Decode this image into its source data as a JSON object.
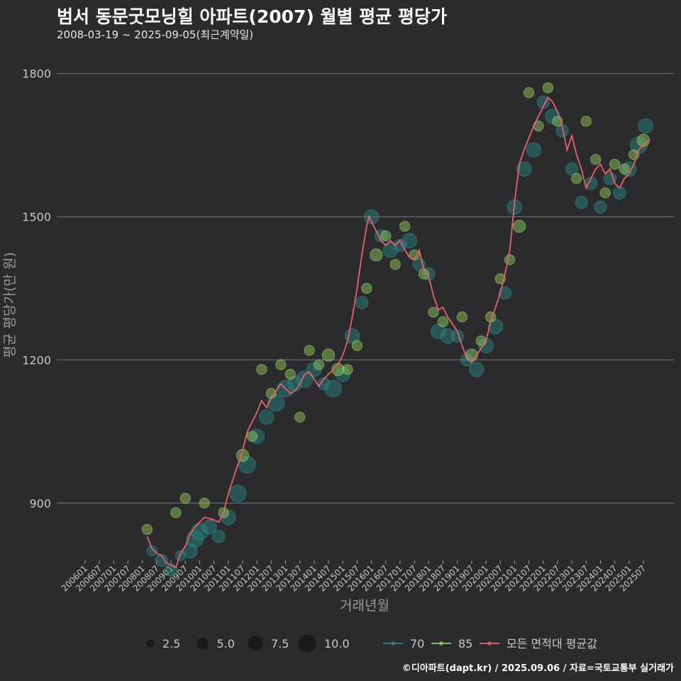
{
  "header": {
    "title": "범서 동문굿모닝힐 아파트(2007) 월별 평균 평당가",
    "subtitle": "2008-03-19 ~ 2025-09-05(최근계약일)"
  },
  "caption": "©디아파트(dapt.kr) / 2025.09.06 / 자료=국토교통부 실거래가",
  "colors": {
    "background": "#2b2a2c",
    "grid": "#6b6b6b",
    "area_70": "#2a8a8a",
    "area_85": "#93d35f",
    "mean_line": "#e8626a"
  },
  "legend": {
    "size_items": [
      "2.5",
      "5.0",
      "7.5",
      "10.0"
    ],
    "series_items": [
      {
        "key": "area_70",
        "label": "70"
      },
      {
        "key": "area_85",
        "label": "85"
      },
      {
        "key": "mean_line",
        "label": "모든 면적대 평균값"
      }
    ]
  },
  "chart_data": {
    "type": "scatter",
    "xlabel": "거래년월",
    "ylabel": "평균 평당가(만 원)",
    "ylim": [
      780,
      1850
    ],
    "yticks": [
      900,
      1200,
      1500,
      1800
    ],
    "xticks": [
      "200601",
      "200607",
      "200701",
      "200707",
      "200801",
      "200807",
      "200901",
      "200907",
      "201001",
      "201007",
      "201101",
      "201107",
      "201201",
      "201207",
      "201301",
      "201307",
      "201401",
      "201407",
      "201501",
      "201507",
      "201601",
      "201607",
      "201701",
      "201707",
      "201801",
      "201807",
      "201901",
      "201907",
      "202001",
      "202007",
      "202101",
      "202107",
      "202201",
      "202207",
      "202301",
      "202307",
      "202401",
      "202407",
      "202501",
      "202507"
    ],
    "grid": true,
    "legend_position": "bottom",
    "series": [
      {
        "name": "모든 면적대 평균값",
        "color_key": "mean_line",
        "type": "line",
        "points": [
          [
            "2008-03",
            830
          ],
          [
            "2008-05",
            805
          ],
          [
            "2008-07",
            795
          ],
          [
            "2008-09",
            790
          ],
          [
            "2008-11",
            775
          ],
          [
            "2009-01",
            770
          ],
          [
            "2009-03",
            765
          ],
          [
            "2009-05",
            795
          ],
          [
            "2009-07",
            810
          ],
          [
            "2009-09",
            835
          ],
          [
            "2009-11",
            850
          ],
          [
            "2010-01",
            860
          ],
          [
            "2010-03",
            870
          ],
          [
            "2010-05",
            868
          ],
          [
            "2010-07",
            865
          ],
          [
            "2010-09",
            860
          ],
          [
            "2010-11",
            880
          ],
          [
            "2011-01",
            920
          ],
          [
            "2011-03",
            950
          ],
          [
            "2011-05",
            980
          ],
          [
            "2011-07",
            1010
          ],
          [
            "2011-09",
            1050
          ],
          [
            "2011-11",
            1070
          ],
          [
            "2012-01",
            1090
          ],
          [
            "2012-03",
            1115
          ],
          [
            "2012-05",
            1100
          ],
          [
            "2012-07",
            1120
          ],
          [
            "2012-09",
            1135
          ],
          [
            "2012-11",
            1150
          ],
          [
            "2013-01",
            1140
          ],
          [
            "2013-03",
            1130
          ],
          [
            "2013-05",
            1135
          ],
          [
            "2013-07",
            1150
          ],
          [
            "2013-09",
            1170
          ],
          [
            "2013-11",
            1175
          ],
          [
            "2014-01",
            1160
          ],
          [
            "2014-03",
            1145
          ],
          [
            "2014-05",
            1160
          ],
          [
            "2014-07",
            1170
          ],
          [
            "2014-09",
            1180
          ],
          [
            "2014-11",
            1190
          ],
          [
            "2015-01",
            1210
          ],
          [
            "2015-03",
            1240
          ],
          [
            "2015-05",
            1290
          ],
          [
            "2015-07",
            1350
          ],
          [
            "2015-09",
            1420
          ],
          [
            "2015-11",
            1480
          ],
          [
            "2015-12",
            1500
          ],
          [
            "2016-01",
            1490
          ],
          [
            "2016-03",
            1470
          ],
          [
            "2016-05",
            1450
          ],
          [
            "2016-07",
            1440
          ],
          [
            "2016-09",
            1450
          ],
          [
            "2016-11",
            1440
          ],
          [
            "2017-01",
            1450
          ],
          [
            "2017-03",
            1430
          ],
          [
            "2017-05",
            1415
          ],
          [
            "2017-07",
            1410
          ],
          [
            "2017-09",
            1430
          ],
          [
            "2017-11",
            1390
          ],
          [
            "2018-01",
            1375
          ],
          [
            "2018-03",
            1335
          ],
          [
            "2018-05",
            1305
          ],
          [
            "2018-07",
            1310
          ],
          [
            "2018-09",
            1290
          ],
          [
            "2018-11",
            1275
          ],
          [
            "2019-01",
            1260
          ],
          [
            "2019-03",
            1230
          ],
          [
            "2019-05",
            1205
          ],
          [
            "2019-07",
            1195
          ],
          [
            "2019-09",
            1210
          ],
          [
            "2019-11",
            1225
          ],
          [
            "2020-01",
            1240
          ],
          [
            "2020-03",
            1280
          ],
          [
            "2020-05",
            1310
          ],
          [
            "2020-07",
            1340
          ],
          [
            "2020-09",
            1380
          ],
          [
            "2020-11",
            1430
          ],
          [
            "2021-01",
            1530
          ],
          [
            "2021-03",
            1610
          ],
          [
            "2021-05",
            1640
          ],
          [
            "2021-07",
            1665
          ],
          [
            "2021-09",
            1690
          ],
          [
            "2021-11",
            1710
          ],
          [
            "2022-01",
            1730
          ],
          [
            "2022-03",
            1750
          ],
          [
            "2022-05",
            1740
          ],
          [
            "2022-07",
            1720
          ],
          [
            "2022-09",
            1690
          ],
          [
            "2022-11",
            1640
          ],
          [
            "2023-01",
            1670
          ],
          [
            "2023-03",
            1630
          ],
          [
            "2023-05",
            1600
          ],
          [
            "2023-07",
            1560
          ],
          [
            "2023-09",
            1580
          ],
          [
            "2023-11",
            1600
          ],
          [
            "2024-01",
            1610
          ],
          [
            "2024-03",
            1590
          ],
          [
            "2024-05",
            1600
          ],
          [
            "2024-07",
            1570
          ],
          [
            "2024-09",
            1560
          ],
          [
            "2024-11",
            1580
          ],
          [
            "2025-01",
            1590
          ],
          [
            "2025-03",
            1610
          ],
          [
            "2025-05",
            1640
          ],
          [
            "2025-07",
            1650
          ],
          [
            "2025-09",
            1660
          ]
        ]
      },
      {
        "name": "70",
        "color_key": "area_70",
        "type": "bubble",
        "points": [
          [
            "2008-05",
            800,
            3
          ],
          [
            "2008-09",
            780,
            4
          ],
          [
            "2009-01",
            760,
            4
          ],
          [
            "2009-05",
            790,
            3
          ],
          [
            "2009-09",
            800,
            5
          ],
          [
            "2009-11",
            825,
            6
          ],
          [
            "2010-01",
            840,
            6
          ],
          [
            "2010-05",
            850,
            5
          ],
          [
            "2010-09",
            830,
            4
          ],
          [
            "2011-01",
            870,
            5
          ],
          [
            "2011-05",
            920,
            6
          ],
          [
            "2011-09",
            980,
            6
          ],
          [
            "2012-01",
            1040,
            5
          ],
          [
            "2012-05",
            1080,
            5
          ],
          [
            "2012-09",
            1110,
            6
          ],
          [
            "2013-01",
            1140,
            6
          ],
          [
            "2013-05",
            1150,
            5
          ],
          [
            "2013-09",
            1160,
            6
          ],
          [
            "2014-01",
            1180,
            5
          ],
          [
            "2014-05",
            1150,
            4
          ],
          [
            "2014-09",
            1140,
            6
          ],
          [
            "2015-01",
            1170,
            5
          ],
          [
            "2015-05",
            1250,
            5
          ],
          [
            "2015-09",
            1320,
            4
          ],
          [
            "2016-01",
            1500,
            5
          ],
          [
            "2016-05",
            1460,
            4
          ],
          [
            "2016-09",
            1430,
            5
          ],
          [
            "2017-01",
            1440,
            4
          ],
          [
            "2017-05",
            1450,
            5
          ],
          [
            "2017-09",
            1400,
            4
          ],
          [
            "2018-01",
            1380,
            4
          ],
          [
            "2018-05",
            1260,
            5
          ],
          [
            "2018-09",
            1250,
            5
          ],
          [
            "2019-01",
            1250,
            4
          ],
          [
            "2019-05",
            1200,
            4
          ],
          [
            "2019-09",
            1180,
            5
          ],
          [
            "2020-01",
            1230,
            5
          ],
          [
            "2020-05",
            1270,
            5
          ],
          [
            "2020-09",
            1340,
            4
          ],
          [
            "2021-01",
            1520,
            5
          ],
          [
            "2021-05",
            1600,
            5
          ],
          [
            "2021-09",
            1640,
            5
          ],
          [
            "2022-01",
            1740,
            4
          ],
          [
            "2022-05",
            1710,
            5
          ],
          [
            "2022-09",
            1680,
            4
          ],
          [
            "2023-01",
            1600,
            4
          ],
          [
            "2023-05",
            1530,
            4
          ],
          [
            "2023-09",
            1570,
            4
          ],
          [
            "2024-01",
            1520,
            4
          ],
          [
            "2024-05",
            1580,
            4
          ],
          [
            "2024-09",
            1550,
            4
          ],
          [
            "2025-01",
            1600,
            5
          ],
          [
            "2025-05",
            1650,
            6
          ],
          [
            "2025-08",
            1690,
            5
          ]
        ]
      },
      {
        "name": "85",
        "color_key": "area_85",
        "type": "bubble",
        "points": [
          [
            "2008-03",
            845,
            3
          ],
          [
            "2009-03",
            880,
            3
          ],
          [
            "2009-07",
            910,
            3
          ],
          [
            "2010-03",
            900,
            3
          ],
          [
            "2010-11",
            880,
            3
          ],
          [
            "2011-07",
            1000,
            4
          ],
          [
            "2011-11",
            1040,
            3
          ],
          [
            "2012-03",
            1180,
            3
          ],
          [
            "2012-07",
            1130,
            3
          ],
          [
            "2012-11",
            1190,
            3
          ],
          [
            "2013-03",
            1170,
            3
          ],
          [
            "2013-07",
            1080,
            3
          ],
          [
            "2013-11",
            1220,
            3
          ],
          [
            "2014-03",
            1190,
            3
          ],
          [
            "2014-07",
            1210,
            4
          ],
          [
            "2014-11",
            1180,
            4
          ],
          [
            "2015-03",
            1180,
            3
          ],
          [
            "2015-07",
            1230,
            3
          ],
          [
            "2015-11",
            1350,
            3
          ],
          [
            "2016-03",
            1420,
            4
          ],
          [
            "2016-07",
            1460,
            3
          ],
          [
            "2016-11",
            1400,
            3
          ],
          [
            "2017-03",
            1480,
            3
          ],
          [
            "2017-07",
            1420,
            3
          ],
          [
            "2017-11",
            1380,
            3
          ],
          [
            "2018-03",
            1300,
            3
          ],
          [
            "2018-07",
            1280,
            3
          ],
          [
            "2019-03",
            1290,
            3
          ],
          [
            "2019-07",
            1210,
            4
          ],
          [
            "2019-11",
            1240,
            3
          ],
          [
            "2020-03",
            1290,
            3
          ],
          [
            "2020-07",
            1370,
            3
          ],
          [
            "2020-11",
            1410,
            3
          ],
          [
            "2021-03",
            1480,
            4
          ],
          [
            "2021-07",
            1760,
            3
          ],
          [
            "2021-11",
            1690,
            3
          ],
          [
            "2022-03",
            1770,
            3
          ],
          [
            "2022-07",
            1700,
            3
          ],
          [
            "2023-03",
            1580,
            3
          ],
          [
            "2023-07",
            1700,
            3
          ],
          [
            "2023-11",
            1620,
            3
          ],
          [
            "2024-03",
            1550,
            3
          ],
          [
            "2024-07",
            1610,
            3
          ],
          [
            "2024-11",
            1600,
            3
          ],
          [
            "2025-03",
            1630,
            3
          ],
          [
            "2025-07",
            1660,
            4
          ]
        ]
      }
    ]
  }
}
